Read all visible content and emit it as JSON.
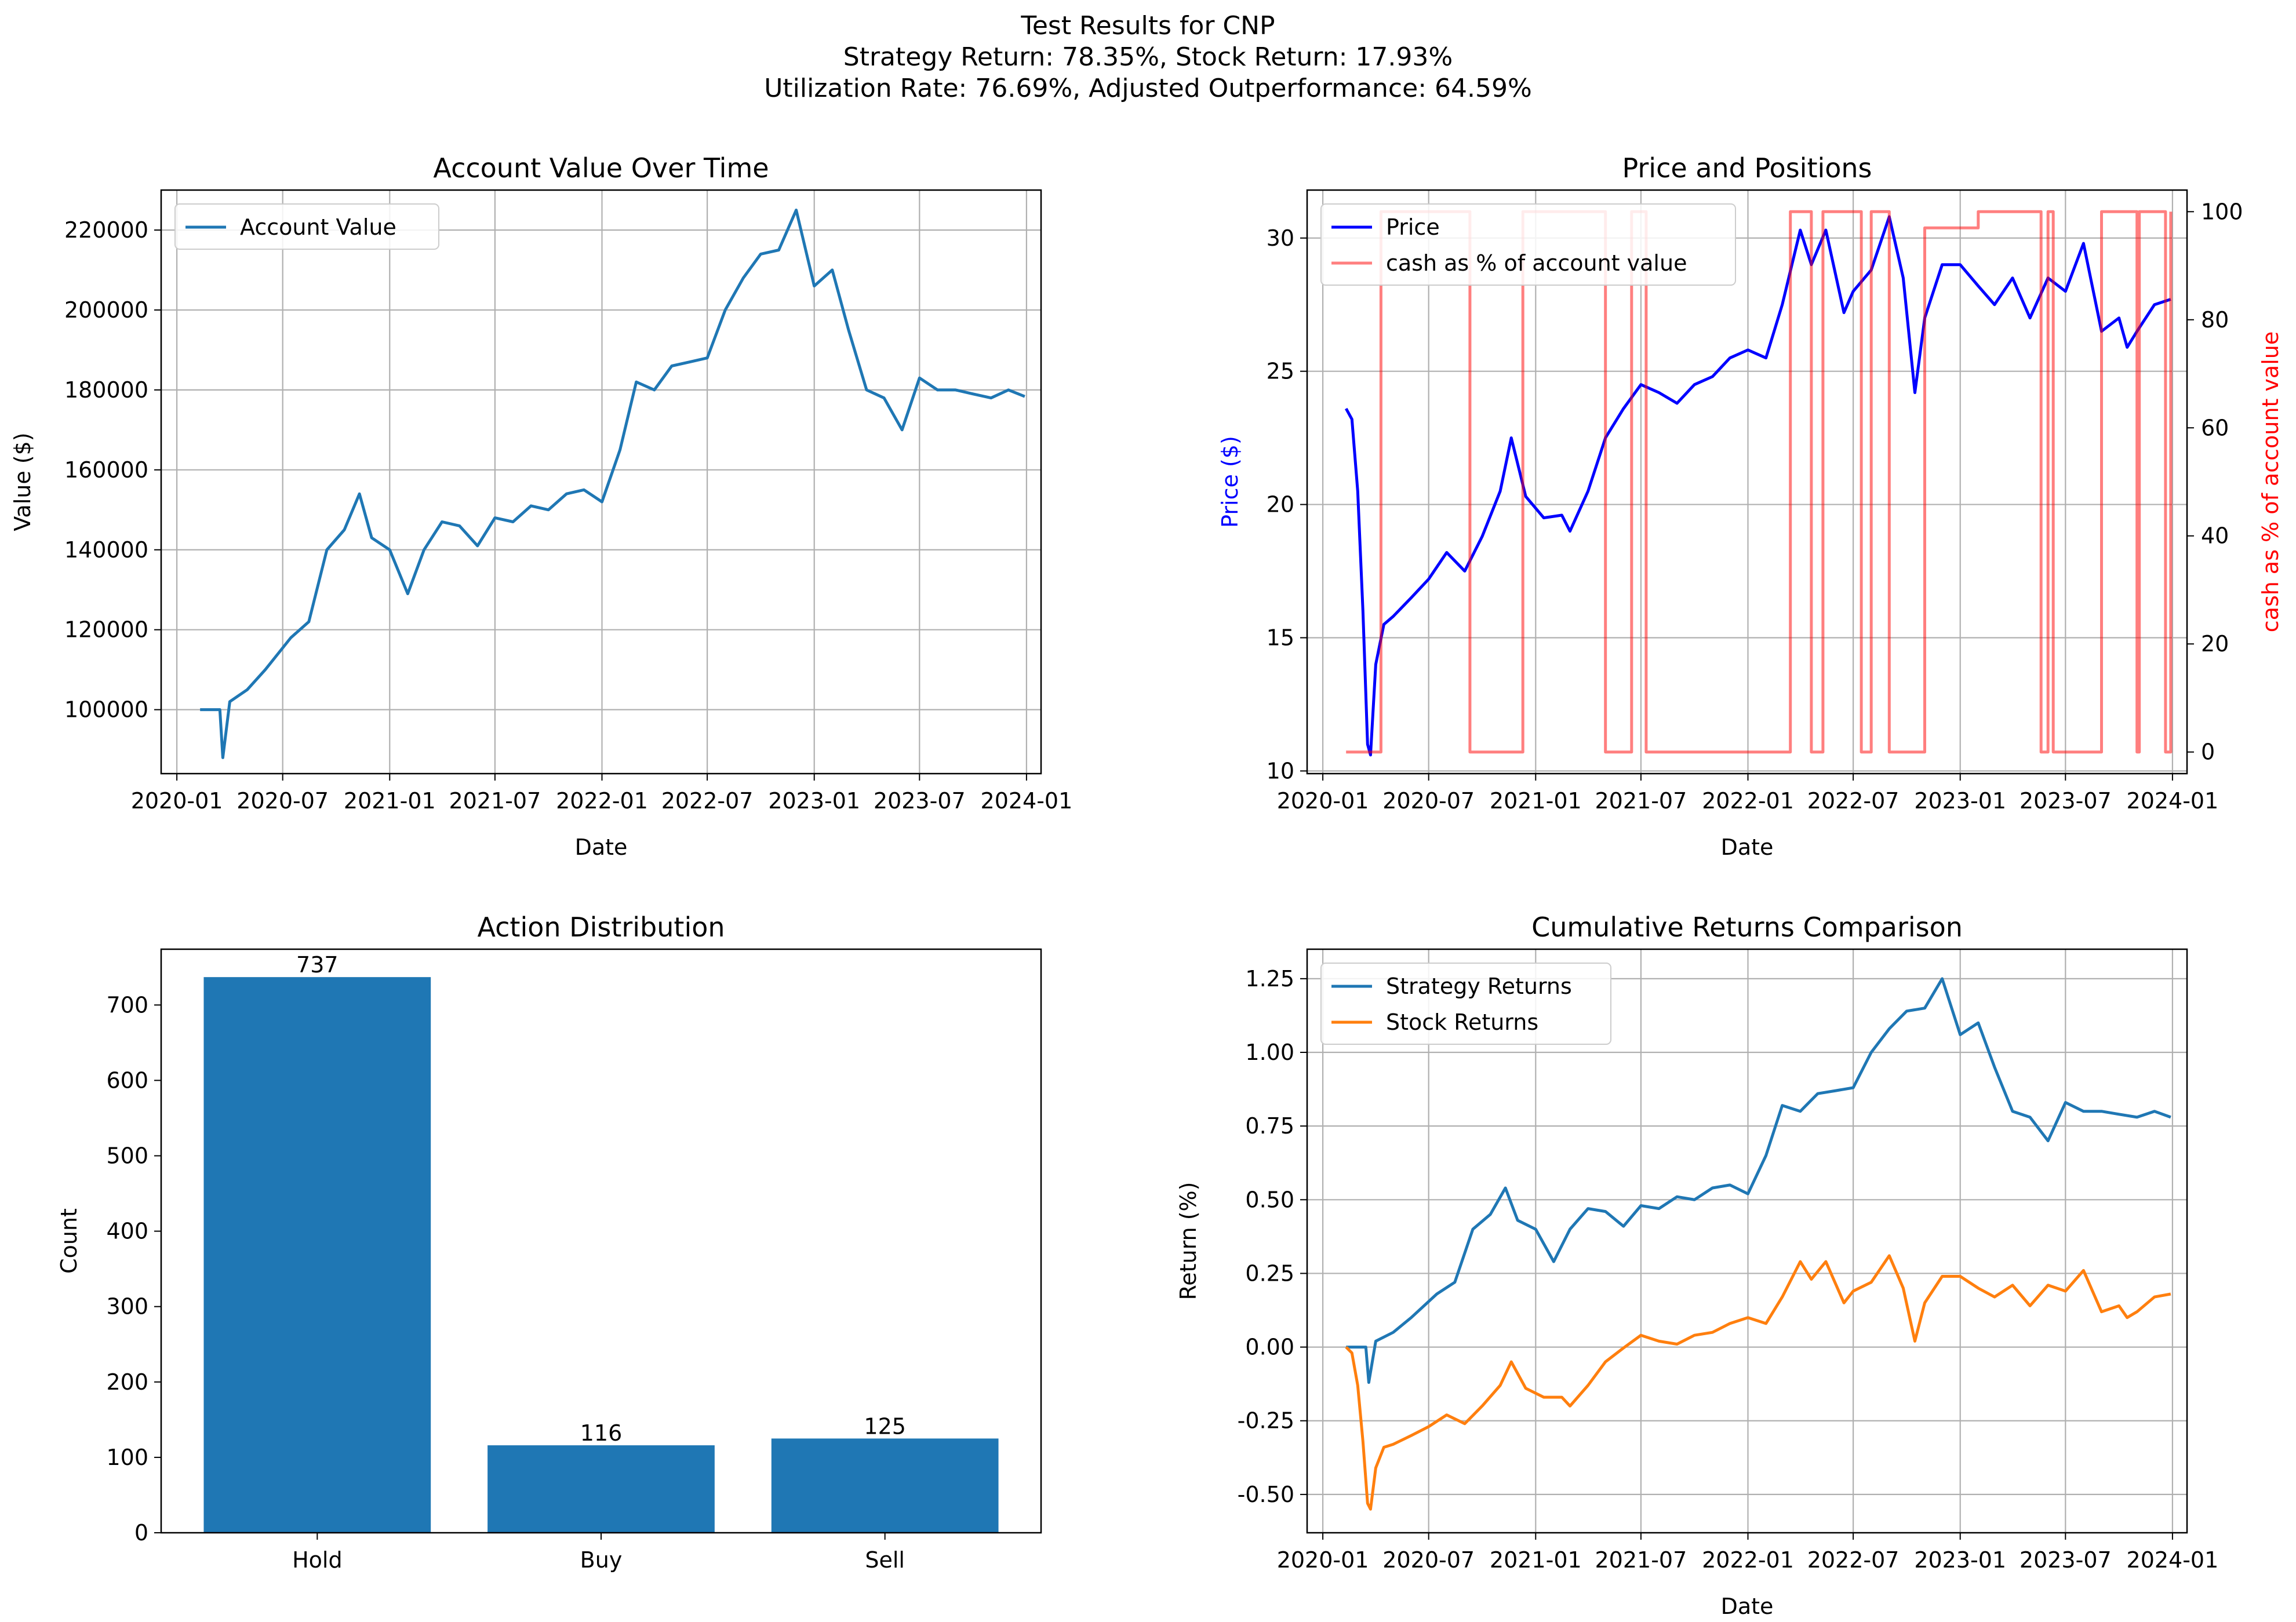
{
  "figure": {
    "title_lines": [
      "Test Results for CNP",
      "Strategy Return: 78.35%, Stock Return: 17.93%",
      "Utilization Rate: 76.69%, Adjusted Outperformance: 64.59%"
    ]
  },
  "chart_data": [
    {
      "id": "account",
      "type": "line",
      "title": "Account Value Over Time",
      "xlabel": "Date",
      "ylabel": "Value ($)",
      "xlim": [
        "2019-12-05",
        "2024-01-26"
      ],
      "ylim": [
        84000,
        230000
      ],
      "xticks": [
        "2020-01",
        "2020-07",
        "2021-01",
        "2021-07",
        "2022-01",
        "2022-07",
        "2023-01",
        "2023-07",
        "2024-01"
      ],
      "yticks": [
        100000,
        120000,
        140000,
        160000,
        180000,
        200000,
        220000
      ],
      "grid": true,
      "legend": {
        "position": "upper left",
        "entries": [
          "Account Value"
        ]
      },
      "series": [
        {
          "name": "Account Value",
          "color": "#1f77b4",
          "x": [
            "2020-02-10",
            "2020-03-15",
            "2020-03-20",
            "2020-04-01",
            "2020-05-01",
            "2020-06-01",
            "2020-07-15",
            "2020-08-15",
            "2020-09-15",
            "2020-10-15",
            "2020-11-10",
            "2020-12-01",
            "2021-01-01",
            "2021-02-01",
            "2021-03-01",
            "2021-04-01",
            "2021-05-01",
            "2021-06-01",
            "2021-07-01",
            "2021-08-01",
            "2021-09-01",
            "2021-10-01",
            "2021-11-01",
            "2021-12-01",
            "2022-01-01",
            "2022-02-01",
            "2022-03-01",
            "2022-04-01",
            "2022-05-01",
            "2022-06-01",
            "2022-07-01",
            "2022-08-01",
            "2022-09-01",
            "2022-10-01",
            "2022-11-01",
            "2022-12-01",
            "2023-01-01",
            "2023-02-01",
            "2023-03-01",
            "2023-04-01",
            "2023-05-01",
            "2023-06-01",
            "2023-07-01",
            "2023-08-01",
            "2023-09-01",
            "2023-10-01",
            "2023-11-01",
            "2023-12-01",
            "2023-12-29"
          ],
          "y": [
            100000,
            100000,
            88000,
            102000,
            105000,
            110000,
            118000,
            122000,
            140000,
            145000,
            154000,
            143000,
            140000,
            129000,
            140000,
            147000,
            146000,
            141000,
            148000,
            147000,
            151000,
            150000,
            154000,
            155000,
            152000,
            165000,
            182000,
            180000,
            186000,
            187000,
            188000,
            200000,
            208000,
            214000,
            215000,
            225000,
            206000,
            210000,
            195000,
            180000,
            178000,
            170000,
            183000,
            180000,
            180000,
            179000,
            178000,
            180000,
            178350
          ]
        }
      ]
    },
    {
      "id": "price",
      "type": "line",
      "title": "Price and Positions",
      "xlabel": "Date",
      "ylabel": "Price ($)",
      "y2label": "cash as % of account value",
      "xlim": [
        "2019-12-05",
        "2024-01-26"
      ],
      "ylim": [
        9.9,
        31.8
      ],
      "y2lim": [
        -4,
        104
      ],
      "xticks": [
        "2020-01",
        "2020-07",
        "2021-01",
        "2021-07",
        "2022-01",
        "2022-07",
        "2023-01",
        "2023-07",
        "2024-01"
      ],
      "yticks": [
        10,
        15,
        20,
        25,
        30
      ],
      "y2ticks": [
        0,
        20,
        40,
        60,
        80,
        100
      ],
      "grid": true,
      "legend": {
        "position": "upper left",
        "entries": [
          "Price",
          "cash as % of account value"
        ]
      },
      "series": [
        {
          "name": "Price",
          "color": "#0000ff",
          "x": [
            "2020-02-10",
            "2020-02-20",
            "2020-03-01",
            "2020-03-10",
            "2020-03-18",
            "2020-03-23",
            "2020-04-01",
            "2020-04-15",
            "2020-05-01",
            "2020-06-01",
            "2020-07-01",
            "2020-08-01",
            "2020-09-01",
            "2020-10-01",
            "2020-11-01",
            "2020-11-20",
            "2020-12-15",
            "2021-01-15",
            "2021-02-15",
            "2021-03-01",
            "2021-04-01",
            "2021-05-01",
            "2021-06-01",
            "2021-07-01",
            "2021-08-01",
            "2021-09-01",
            "2021-10-01",
            "2021-11-01",
            "2021-12-01",
            "2022-01-01",
            "2022-02-01",
            "2022-03-01",
            "2022-04-01",
            "2022-04-20",
            "2022-05-15",
            "2022-06-15",
            "2022-07-01",
            "2022-08-01",
            "2022-09-01",
            "2022-09-25",
            "2022-10-15",
            "2022-11-01",
            "2022-12-01",
            "2023-01-01",
            "2023-02-01",
            "2023-03-01",
            "2023-04-01",
            "2023-05-01",
            "2023-06-01",
            "2023-07-01",
            "2023-08-01",
            "2023-09-01",
            "2023-10-01",
            "2023-10-15",
            "2023-11-01",
            "2023-12-01",
            "2023-12-29"
          ],
          "y": [
            23.6,
            23.2,
            20.5,
            16.0,
            11.0,
            10.6,
            14.0,
            15.5,
            15.8,
            16.5,
            17.2,
            18.2,
            17.5,
            18.8,
            20.5,
            22.5,
            20.3,
            19.5,
            19.6,
            19.0,
            20.5,
            22.5,
            23.6,
            24.5,
            24.2,
            23.8,
            24.5,
            24.8,
            25.5,
            25.8,
            25.5,
            27.5,
            30.3,
            29.0,
            30.3,
            27.2,
            28.0,
            28.8,
            30.8,
            28.5,
            24.2,
            27.0,
            29.0,
            29.0,
            28.2,
            27.5,
            28.5,
            27.0,
            28.5,
            28.0,
            29.8,
            26.5,
            27.0,
            25.9,
            26.5,
            27.5,
            27.7
          ]
        },
        {
          "name": "cash as % of account value",
          "color": "#ff0000",
          "axis": "y2",
          "pattern": "switching between 0 and 100",
          "x": [
            "2020-02-10",
            "2020-03-28",
            "2020-04-10",
            "2020-09-01",
            "2020-09-10",
            "2020-12-01",
            "2020-12-10",
            "2021-04-01",
            "2021-05-01",
            "2021-06-15",
            "2021-07-10",
            "2022-03-15",
            "2022-04-20",
            "2022-05-10",
            "2022-07-15",
            "2022-08-01",
            "2022-09-01",
            "2022-11-01",
            "2023-02-01",
            "2023-05-01",
            "2023-05-20",
            "2023-06-01",
            "2023-06-10",
            "2023-09-01",
            "2023-10-15",
            "2023-11-01",
            "2023-11-05",
            "2023-12-20",
            "2023-12-29"
          ],
          "y": [
            0,
            0,
            100,
            100,
            0,
            0,
            100,
            100,
            0,
            100,
            0,
            100,
            0,
            100,
            0,
            100,
            0,
            97,
            100,
            100,
            0,
            100,
            0,
            100,
            100,
            0,
            100,
            0,
            100
          ]
        }
      ]
    },
    {
      "id": "actions",
      "type": "bar",
      "title": "Action Distribution",
      "xlabel": "",
      "ylabel": "Count",
      "ylim": [
        0,
        774
      ],
      "yticks": [
        0,
        100,
        200,
        300,
        400,
        500,
        600,
        700
      ],
      "grid": false,
      "categories": [
        "Hold",
        "Buy",
        "Sell"
      ],
      "values": [
        737,
        116,
        125
      ],
      "data_labels": [
        "737",
        "116",
        "125"
      ],
      "color": "#1f77b4"
    },
    {
      "id": "returns",
      "type": "line",
      "title": "Cumulative Returns Comparison",
      "xlabel": "Date",
      "ylabel": "Return (%)",
      "xlim": [
        "2019-12-05",
        "2024-01-26"
      ],
      "ylim": [
        -0.63,
        1.35
      ],
      "xticks": [
        "2020-01",
        "2020-07",
        "2021-01",
        "2021-07",
        "2022-01",
        "2022-07",
        "2023-01",
        "2023-07",
        "2024-01"
      ],
      "yticks": [
        "-0.50",
        "-0.25",
        "0.00",
        "0.25",
        "0.50",
        "0.75",
        "1.00",
        "1.25"
      ],
      "grid": true,
      "legend": {
        "position": "upper left",
        "entries": [
          "Strategy Returns",
          "Stock Returns"
        ]
      },
      "series": [
        {
          "name": "Strategy Returns",
          "color": "#1f77b4",
          "x": [
            "2020-02-10",
            "2020-03-15",
            "2020-03-20",
            "2020-04-01",
            "2020-05-01",
            "2020-06-01",
            "2020-07-15",
            "2020-08-15",
            "2020-09-15",
            "2020-10-15",
            "2020-11-10",
            "2020-12-01",
            "2021-01-01",
            "2021-02-01",
            "2021-03-01",
            "2021-04-01",
            "2021-05-01",
            "2021-06-01",
            "2021-07-01",
            "2021-08-01",
            "2021-09-01",
            "2021-10-01",
            "2021-11-01",
            "2021-12-01",
            "2022-01-01",
            "2022-02-01",
            "2022-03-01",
            "2022-04-01",
            "2022-05-01",
            "2022-06-01",
            "2022-07-01",
            "2022-08-01",
            "2022-09-01",
            "2022-10-01",
            "2022-11-01",
            "2022-12-01",
            "2023-01-01",
            "2023-02-01",
            "2023-03-01",
            "2023-04-01",
            "2023-05-01",
            "2023-06-01",
            "2023-07-01",
            "2023-08-01",
            "2023-09-01",
            "2023-10-01",
            "2023-11-01",
            "2023-12-01",
            "2023-12-29"
          ],
          "y": [
            0,
            0,
            -0.12,
            0.02,
            0.05,
            0.1,
            0.18,
            0.22,
            0.4,
            0.45,
            0.54,
            0.43,
            0.4,
            0.29,
            0.4,
            0.47,
            0.46,
            0.41,
            0.48,
            0.47,
            0.51,
            0.5,
            0.54,
            0.55,
            0.52,
            0.65,
            0.82,
            0.8,
            0.86,
            0.87,
            0.88,
            1.0,
            1.08,
            1.14,
            1.15,
            1.25,
            1.06,
            1.1,
            0.95,
            0.8,
            0.78,
            0.7,
            0.83,
            0.8,
            0.8,
            0.79,
            0.78,
            0.8,
            0.78
          ]
        },
        {
          "name": "Stock Returns",
          "color": "#ff7f0e",
          "x": [
            "2020-02-10",
            "2020-02-20",
            "2020-03-01",
            "2020-03-10",
            "2020-03-18",
            "2020-03-23",
            "2020-04-01",
            "2020-04-15",
            "2020-05-01",
            "2020-06-01",
            "2020-07-01",
            "2020-08-01",
            "2020-09-01",
            "2020-10-01",
            "2020-11-01",
            "2020-11-20",
            "2020-12-15",
            "2021-01-15",
            "2021-02-15",
            "2021-03-01",
            "2021-04-01",
            "2021-05-01",
            "2021-06-01",
            "2021-07-01",
            "2021-08-01",
            "2021-09-01",
            "2021-10-01",
            "2021-11-01",
            "2021-12-01",
            "2022-01-01",
            "2022-02-01",
            "2022-03-01",
            "2022-04-01",
            "2022-04-20",
            "2022-05-15",
            "2022-06-15",
            "2022-07-01",
            "2022-08-01",
            "2022-09-01",
            "2022-09-25",
            "2022-10-15",
            "2022-11-01",
            "2022-12-01",
            "2023-01-01",
            "2023-02-01",
            "2023-03-01",
            "2023-04-01",
            "2023-05-01",
            "2023-06-01",
            "2023-07-01",
            "2023-08-01",
            "2023-09-01",
            "2023-10-01",
            "2023-10-15",
            "2023-11-01",
            "2023-12-01",
            "2023-12-29"
          ],
          "y": [
            0,
            -0.02,
            -0.13,
            -0.32,
            -0.53,
            -0.55,
            -0.41,
            -0.34,
            -0.33,
            -0.3,
            -0.27,
            -0.23,
            -0.26,
            -0.2,
            -0.13,
            -0.05,
            -0.14,
            -0.17,
            -0.17,
            -0.2,
            -0.13,
            -0.05,
            -0.003,
            0.04,
            0.02,
            0.01,
            0.04,
            0.05,
            0.08,
            0.1,
            0.08,
            0.17,
            0.29,
            0.23,
            0.29,
            0.15,
            0.19,
            0.22,
            0.31,
            0.2,
            0.02,
            0.15,
            0.24,
            0.24,
            0.2,
            0.17,
            0.21,
            0.14,
            0.21,
            0.19,
            0.26,
            0.12,
            0.14,
            0.1,
            0.12,
            0.17,
            0.18
          ]
        }
      ]
    }
  ]
}
